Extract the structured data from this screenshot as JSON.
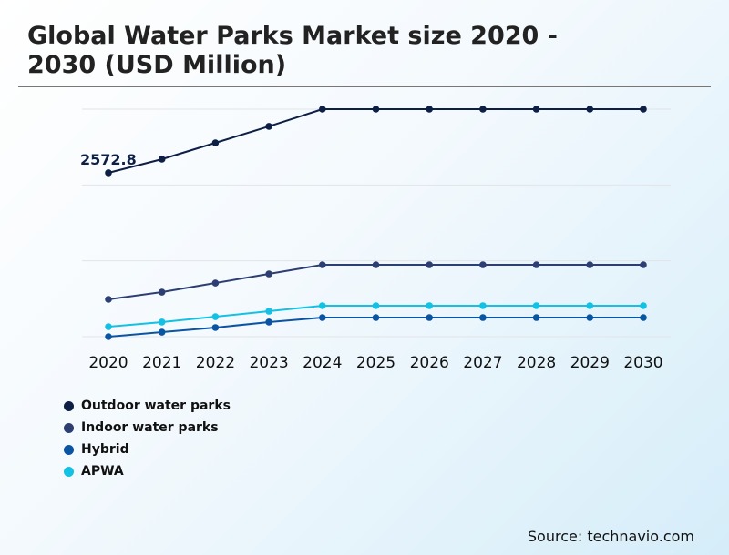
{
  "chart_data": {
    "type": "line",
    "title": "Global Water Parks Market size 2020 - 2030 (USD Million)",
    "xlabel": "",
    "ylabel": "",
    "categories": [
      "2020",
      "2021",
      "2022",
      "2023",
      "2024",
      "2025",
      "2026",
      "2027",
      "2028",
      "2029",
      "2030"
    ],
    "ylim": [
      0,
      3573
    ],
    "grid": true,
    "legend_position": "bottom-left",
    "annotation": "2572.8",
    "series": [
      {
        "name": "Outdoor water parks",
        "color": "#0d1f45",
        "values": [
          2572.8,
          2787,
          3044,
          3302,
          3573,
          3573,
          3573,
          3573,
          3573,
          3573,
          3573
        ]
      },
      {
        "name": "Indoor water parks",
        "color": "#2d3f72",
        "values": [
          586,
          700,
          843,
          986,
          1129,
          1129,
          1129,
          1129,
          1129,
          1129,
          1129
        ]
      },
      {
        "name": "Hybrid",
        "color": "#0a55a3",
        "values": [
          0,
          71,
          143,
          229,
          300,
          300,
          300,
          300,
          300,
          300,
          300
        ]
      },
      {
        "name": "APWA",
        "color": "#12c1e3",
        "values": [
          157,
          229,
          314,
          400,
          486,
          486,
          486,
          486,
          486,
          486,
          486
        ]
      }
    ]
  },
  "source": "Source: technavio.com"
}
